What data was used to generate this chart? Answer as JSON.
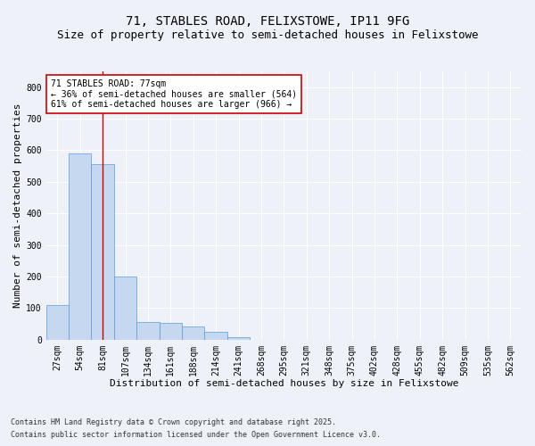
{
  "title_line1": "71, STABLES ROAD, FELIXSTOWE, IP11 9FG",
  "title_line2": "Size of property relative to semi-detached houses in Felixstowe",
  "xlabel": "Distribution of semi-detached houses by size in Felixstowe",
  "ylabel": "Number of semi-detached properties",
  "categories": [
    "27sqm",
    "54sqm",
    "81sqm",
    "107sqm",
    "134sqm",
    "161sqm",
    "188sqm",
    "214sqm",
    "241sqm",
    "268sqm",
    "295sqm",
    "321sqm",
    "348sqm",
    "375sqm",
    "402sqm",
    "428sqm",
    "455sqm",
    "482sqm",
    "509sqm",
    "535sqm",
    "562sqm"
  ],
  "values": [
    110,
    590,
    555,
    200,
    55,
    52,
    42,
    25,
    8,
    0,
    0,
    0,
    0,
    0,
    0,
    0,
    0,
    0,
    0,
    0,
    0
  ],
  "bar_color": "#c5d8f0",
  "bar_edge_color": "#5b9bd5",
  "vline_x": 2,
  "vline_color": "#cc0000",
  "annotation_text_line1": "71 STABLES ROAD: 77sqm",
  "annotation_text_line2": "← 36% of semi-detached houses are smaller (564)",
  "annotation_text_line3": "61% of semi-detached houses are larger (966) →",
  "annotation_box_color": "#cc0000",
  "ylim": [
    0,
    850
  ],
  "yticks": [
    0,
    100,
    200,
    300,
    400,
    500,
    600,
    700,
    800
  ],
  "footnote_line1": "Contains HM Land Registry data © Crown copyright and database right 2025.",
  "footnote_line2": "Contains public sector information licensed under the Open Government Licence v3.0.",
  "bg_color": "#eef2f8",
  "plot_bg_color": "#eef2f8",
  "grid_color": "#ffffff",
  "title_fontsize": 10,
  "subtitle_fontsize": 9,
  "label_fontsize": 8,
  "tick_fontsize": 7,
  "annotation_fontsize": 7,
  "footnote_fontsize": 6
}
